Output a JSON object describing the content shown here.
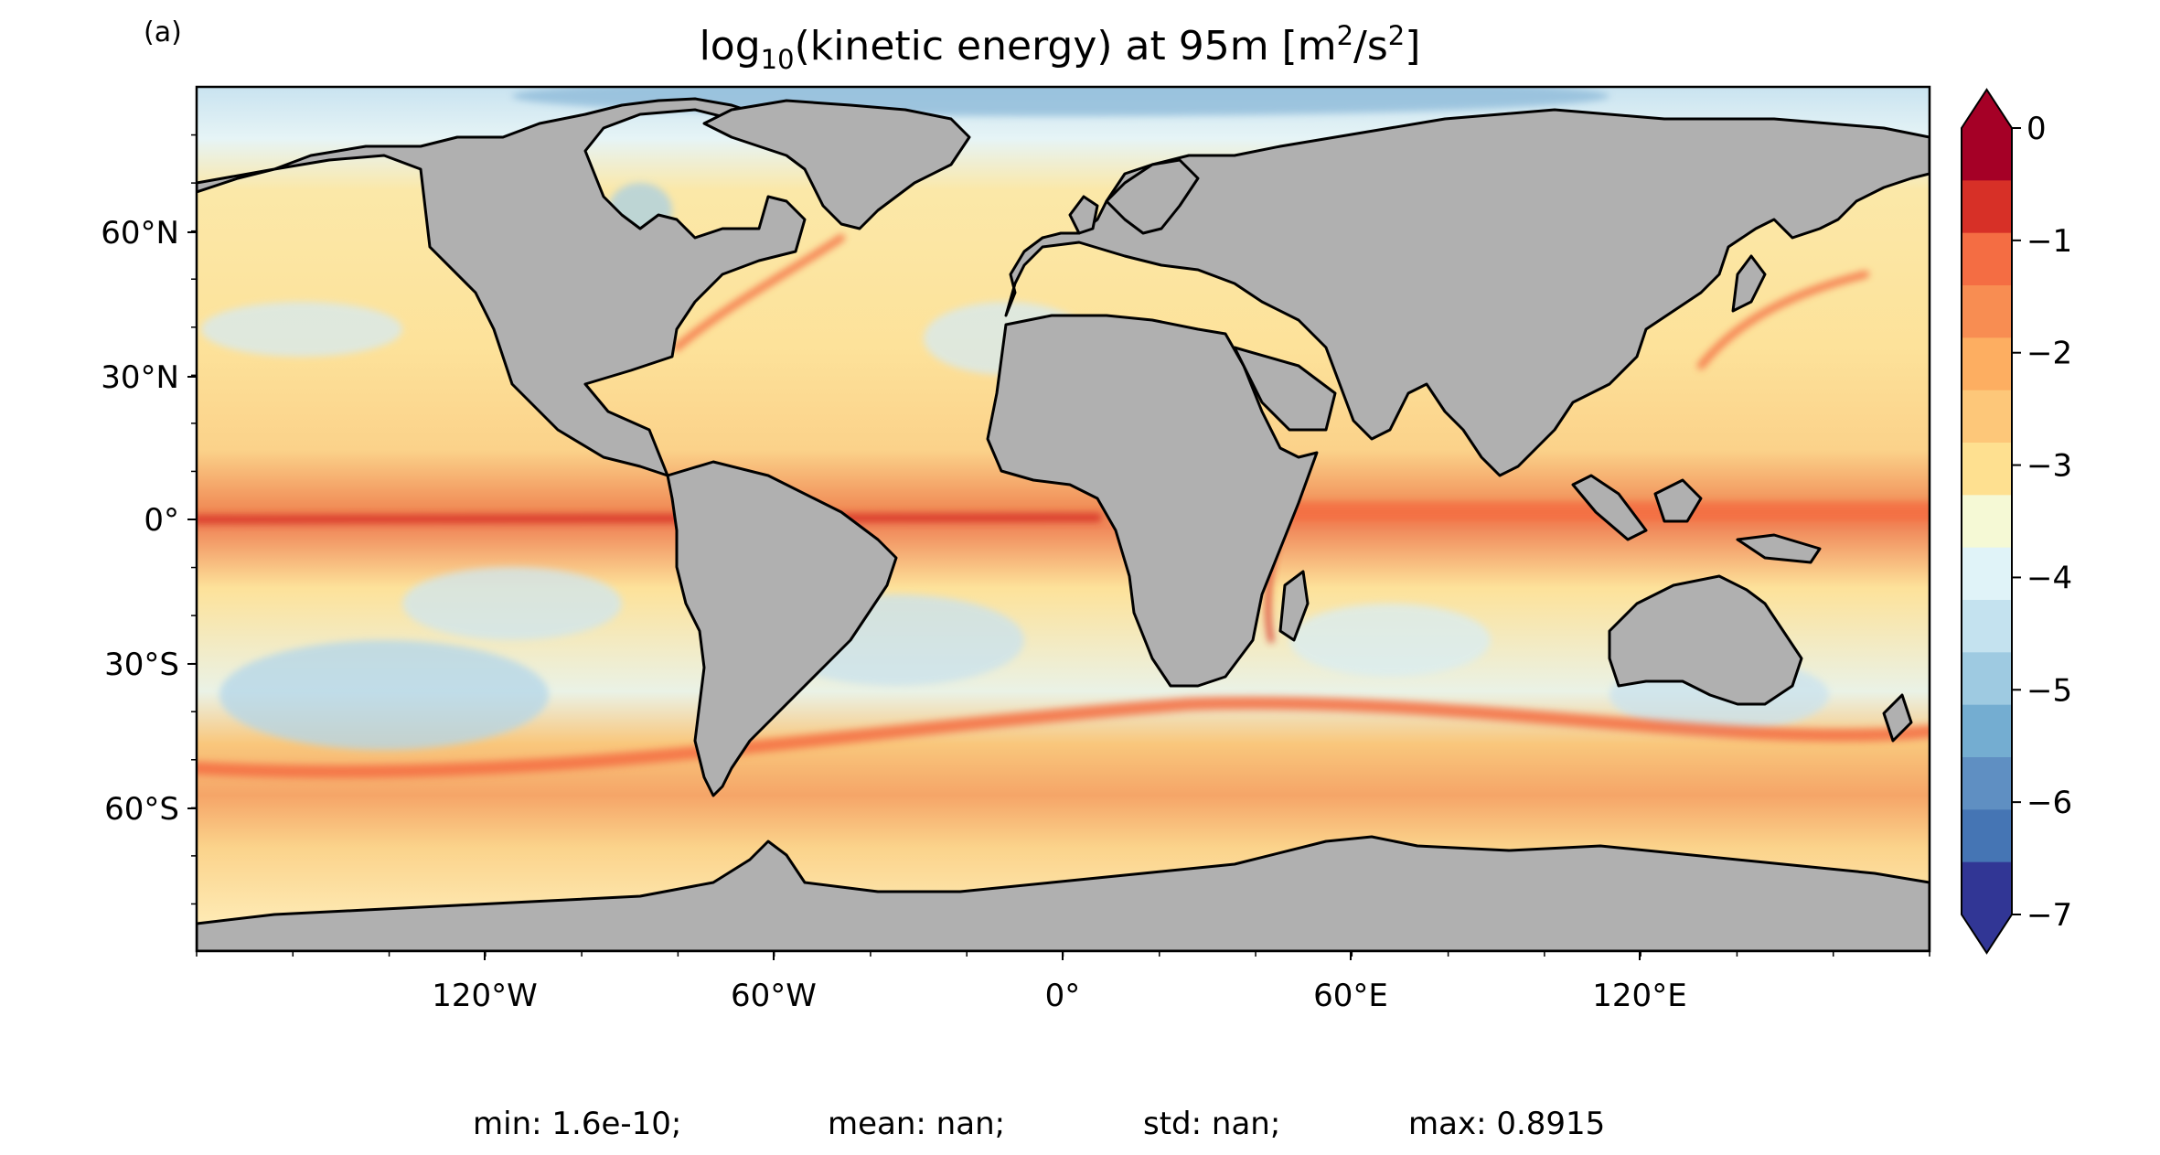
{
  "panel_label": "(a)",
  "title": {
    "prefix": "log",
    "subscript": "10",
    "middle": "(kinetic energy) at 95m [m",
    "sup1": "2",
    "slash": "/s",
    "sup2": "2",
    "suffix": "]"
  },
  "lat_labels": [
    "60°N",
    "30°N",
    "0°",
    "30°S",
    "60°S"
  ],
  "lon_labels": [
    "120°W",
    "60°W",
    "0°",
    "60°E",
    "120°E"
  ],
  "colorbar": {
    "tick_labels": [
      "0",
      "−1",
      "−2",
      "−3",
      "−4",
      "−5",
      "−6",
      "−7"
    ],
    "levels": [
      -7,
      -6.5,
      -6,
      -5.5,
      -5,
      -4.5,
      -4,
      -3.5,
      -3,
      -2.5,
      -2,
      -1.5,
      -1,
      -0.5,
      0
    ],
    "colors": [
      "#313695",
      "#4575b4",
      "#5f8fc2",
      "#74add1",
      "#9ecae1",
      "#c4e2ef",
      "#e0f3f8",
      "#f5f9d5",
      "#fee090",
      "#fdc779",
      "#fdae61",
      "#f88d52",
      "#f46d43",
      "#d73027",
      "#a50026"
    ],
    "extend": "both"
  },
  "stats": {
    "min": "min: 1.6e-10;",
    "mean": "mean: nan;",
    "std": "std: nan;",
    "max": "max: 0.8915"
  },
  "colors": {
    "land": "#b0b0b0",
    "ocean_background": "#fde9a3",
    "coastline": "#000000"
  }
}
